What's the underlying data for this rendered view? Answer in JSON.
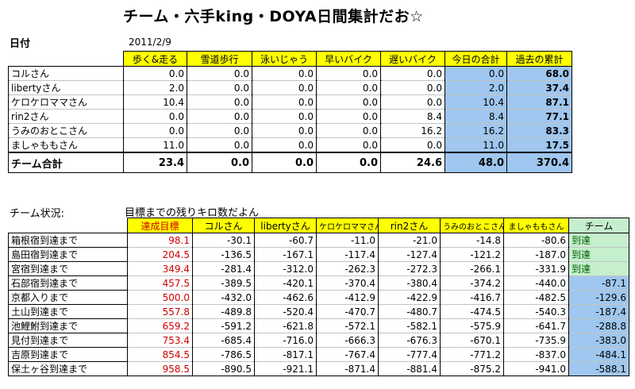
{
  "title": "チーム・六手king・DOYA日間集計だお☆",
  "date": {
    "label": "日付",
    "value": "2011/2/9"
  },
  "summary": {
    "headers": [
      "歩く&走る",
      "雪道歩行",
      "泳いじゃう",
      "早いバイク",
      "遅いバイク",
      "今日の合計",
      "過去の累計"
    ],
    "rows": [
      {
        "name": "コルさん",
        "values": [
          "0.0",
          "0.0",
          "0.0",
          "0.0",
          "0.0",
          "0.0",
          "68.0"
        ]
      },
      {
        "name": "libertyさん",
        "values": [
          "2.0",
          "0.0",
          "0.0",
          "0.0",
          "0.0",
          "2.0",
          "37.4"
        ]
      },
      {
        "name": "ケロケロママさん",
        "values": [
          "10.4",
          "0.0",
          "0.0",
          "0.0",
          "0.0",
          "10.4",
          "87.1"
        ]
      },
      {
        "name": "rin2さん",
        "values": [
          "0.0",
          "0.0",
          "0.0",
          "0.0",
          "8.4",
          "8.4",
          "77.1"
        ]
      },
      {
        "name": "うみのおとこさん",
        "values": [
          "0.0",
          "0.0",
          "0.0",
          "0.0",
          "16.2",
          "16.2",
          "83.3"
        ]
      },
      {
        "name": "ましゃももさん",
        "values": [
          "11.0",
          "0.0",
          "0.0",
          "0.0",
          "0.0",
          "11.0",
          "17.5"
        ]
      }
    ],
    "total": {
      "name": "チーム合計",
      "values": [
        "23.4",
        "0.0",
        "0.0",
        "0.0",
        "24.6",
        "48.0",
        "370.4"
      ]
    }
  },
  "status": {
    "label": "チーム状況:",
    "subtitle": "目標までの残りキロ数だよん",
    "headers": [
      "達成目標",
      "コルさん",
      "libertyさん",
      "ケロケロママさん",
      "rin2さん",
      "うみのおとこさん",
      "ましゃももさん",
      "チーム"
    ],
    "rows": [
      {
        "name": "箱根宿到達まで",
        "target": "98.1",
        "values": [
          "-30.1",
          "-60.7",
          "-11.0",
          "-21.0",
          "-14.8",
          "-80.6"
        ],
        "team": "到達"
      },
      {
        "name": "島田宿到達まで",
        "target": "204.5",
        "values": [
          "-136.5",
          "-167.1",
          "-117.4",
          "-127.4",
          "-121.2",
          "-187.0"
        ],
        "team": "到達"
      },
      {
        "name": "宮宿到達まで",
        "target": "349.4",
        "values": [
          "-281.4",
          "-312.0",
          "-262.3",
          "-272.3",
          "-266.1",
          "-331.9"
        ],
        "team": "到達"
      },
      {
        "name": "石部宿到達まで",
        "target": "457.5",
        "values": [
          "-389.5",
          "-420.1",
          "-370.4",
          "-380.4",
          "-374.2",
          "-440.0"
        ],
        "team": "-87.1"
      },
      {
        "name": "京都入りまで",
        "target": "500.0",
        "values": [
          "-432.0",
          "-462.6",
          "-412.9",
          "-422.9",
          "-416.7",
          "-482.5"
        ],
        "team": "-129.6"
      },
      {
        "name": "土山到達まで",
        "target": "557.8",
        "values": [
          "-489.8",
          "-520.4",
          "-470.7",
          "-480.7",
          "-474.5",
          "-540.3"
        ],
        "team": "-187.4"
      },
      {
        "name": "池鯉鮒到達まで",
        "target": "659.2",
        "values": [
          "-591.2",
          "-621.8",
          "-572.1",
          "-582.1",
          "-575.9",
          "-641.7"
        ],
        "team": "-288.8"
      },
      {
        "name": "見付到達まで",
        "target": "753.4",
        "values": [
          "-685.4",
          "-716.0",
          "-666.3",
          "-676.3",
          "-670.1",
          "-735.9"
        ],
        "team": "-383.0"
      },
      {
        "name": "吉原到達まで",
        "target": "854.5",
        "values": [
          "-786.5",
          "-817.1",
          "-767.4",
          "-777.4",
          "-771.2",
          "-837.0"
        ],
        "team": "-484.1"
      },
      {
        "name": "保土ヶ谷到達まで",
        "target": "958.5",
        "values": [
          "-890.5",
          "-921.1",
          "-871.4",
          "-881.4",
          "-875.2",
          "-941.0"
        ],
        "team": "-588.1"
      }
    ]
  }
}
